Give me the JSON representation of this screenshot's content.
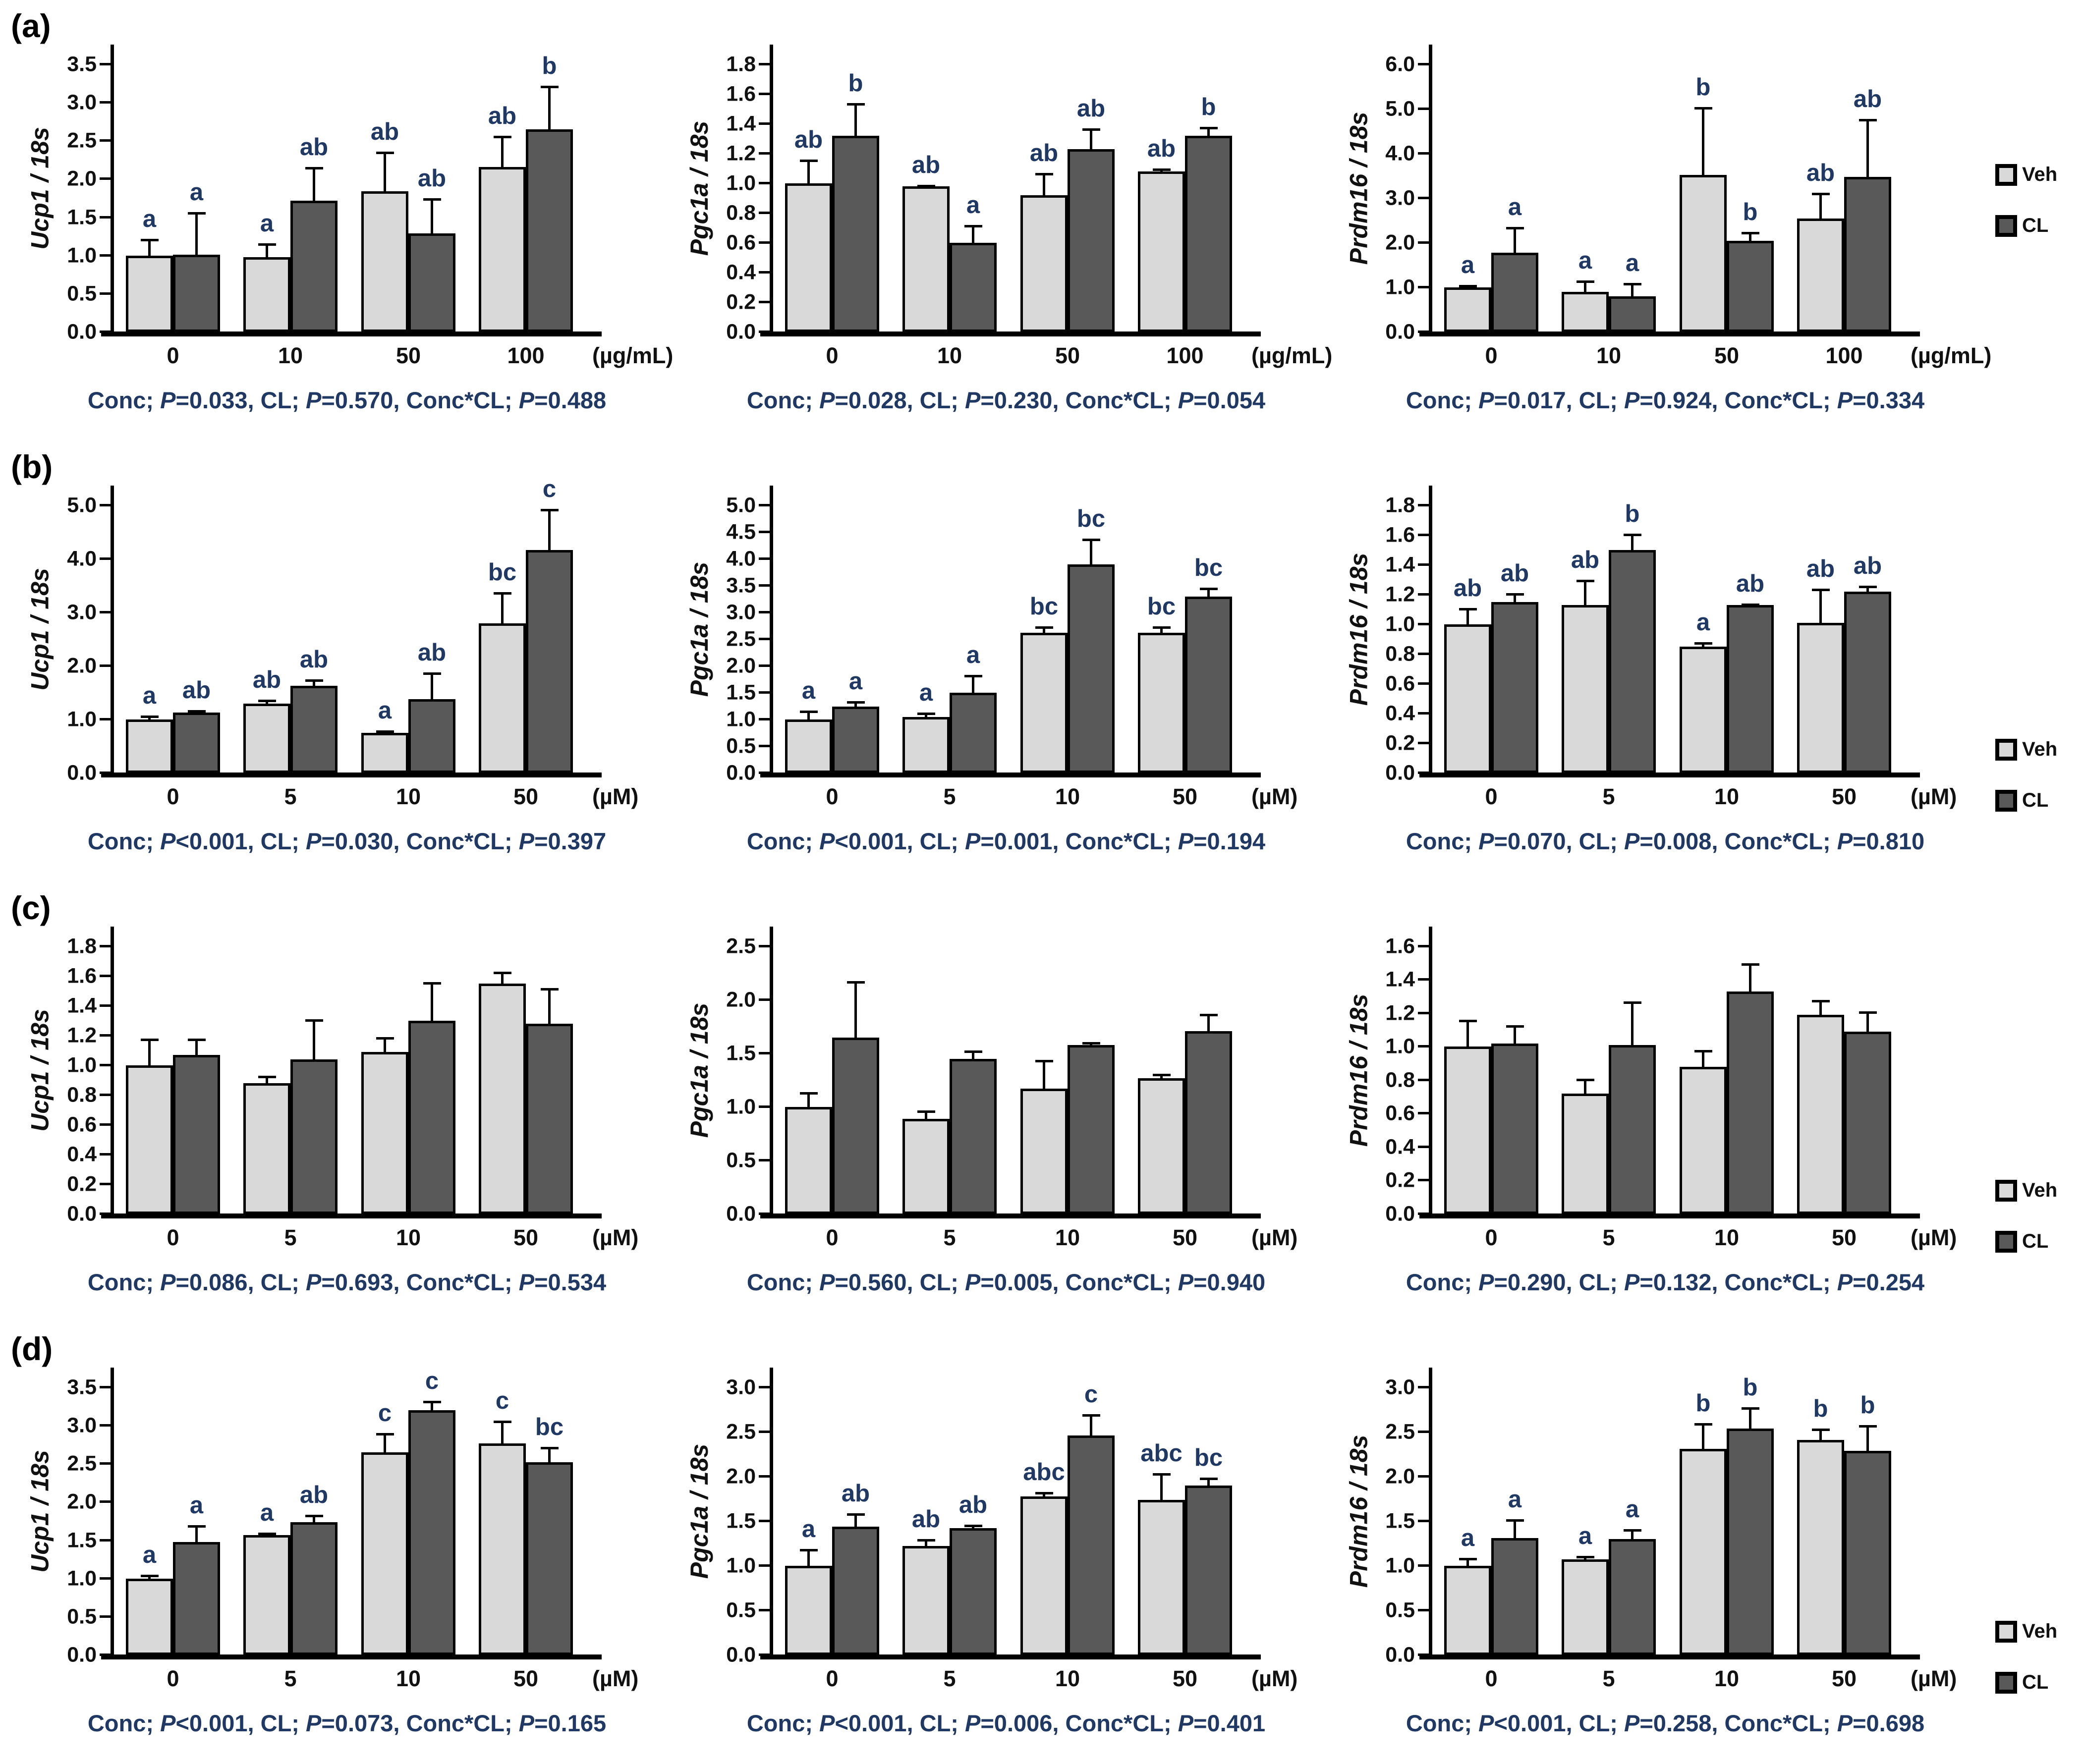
{
  "colors": {
    "veh_fill": "#D9D9D9",
    "cl_fill": "#595959",
    "bar_border": "#000000",
    "letter_color": "#1F3864",
    "caption_color": "#1F3864",
    "axis_color": "#000000"
  },
  "legend": {
    "items": [
      {
        "name": "Veh",
        "label": "Veh",
        "color": "#D9D9D9"
      },
      {
        "name": "CL",
        "label": "CL",
        "color": "#595959"
      }
    ]
  },
  "caption_labels": {
    "conc": "Conc; ",
    "cl": "CL; ",
    "interaction": "Conc*CL; ",
    "p": "P"
  },
  "chart_data": [
    {
      "panel": "(a)",
      "row": 0,
      "col": 0,
      "type": "bar",
      "ylabel": "Ucp1 / 18s",
      "unit": "(µg/mL)",
      "categories": [
        "0",
        "10",
        "50",
        "100"
      ],
      "ylim": [
        0,
        3.5
      ],
      "ystep": 0.5,
      "grid": false,
      "series": [
        {
          "name": "Veh",
          "values": [
            1.0,
            0.98,
            1.84,
            2.16
          ],
          "errors": [
            0.22,
            0.18,
            0.52,
            0.41
          ],
          "letters": [
            "a",
            "a",
            "ab",
            "ab"
          ]
        },
        {
          "name": "CL",
          "values": [
            1.01,
            1.72,
            1.29,
            2.65
          ],
          "errors": [
            0.56,
            0.44,
            0.46,
            0.57
          ],
          "letters": [
            "a",
            "ab",
            "ab",
            "b"
          ]
        }
      ],
      "caption": {
        "conc": "=0.033, ",
        "cl": "=0.570, ",
        "interaction": "=0.488"
      }
    },
    {
      "panel": "",
      "row": 0,
      "col": 1,
      "type": "bar",
      "ylabel": "Pgc1a / 18s",
      "unit": "(µg/mL)",
      "categories": [
        "0",
        "10",
        "50",
        "100"
      ],
      "ylim": [
        0,
        1.8
      ],
      "ystep": 0.2,
      "grid": false,
      "series": [
        {
          "name": "Veh",
          "values": [
            1.0,
            0.98,
            0.92,
            1.08
          ],
          "errors": [
            0.16,
            0.01,
            0.15,
            0.02
          ],
          "letters": [
            "ab",
            "ab",
            "ab",
            "ab"
          ]
        },
        {
          "name": "CL",
          "values": [
            1.32,
            0.6,
            1.23,
            1.32
          ],
          "errors": [
            0.22,
            0.12,
            0.14,
            0.06
          ],
          "letters": [
            "b",
            "a",
            "ab",
            "b"
          ]
        }
      ],
      "caption": {
        "conc": "=0.028, ",
        "cl": "=0.230, ",
        "interaction": "=0.054"
      }
    },
    {
      "panel": "",
      "row": 0,
      "col": 2,
      "type": "bar",
      "ylabel": "Prdm16 / 18s",
      "unit": "(µg/mL)",
      "categories": [
        "0",
        "10",
        "50",
        "100"
      ],
      "ylim": [
        0,
        6.0
      ],
      "ystep": 1.0,
      "grid": false,
      "series": [
        {
          "name": "Veh",
          "values": [
            1.0,
            0.9,
            3.52,
            2.55
          ],
          "errors": [
            0.05,
            0.25,
            1.52,
            0.58
          ],
          "letters": [
            "a",
            "a",
            "b",
            "ab"
          ]
        },
        {
          "name": "CL",
          "values": [
            1.78,
            0.8,
            2.05,
            3.48
          ],
          "errors": [
            0.58,
            0.3,
            0.2,
            1.3
          ],
          "letters": [
            "a",
            "a",
            "b",
            "ab"
          ]
        }
      ],
      "caption": {
        "conc": "=0.017, ",
        "cl": "=0.924, ",
        "interaction": "=0.334"
      }
    },
    {
      "panel": "(b)",
      "row": 1,
      "col": 0,
      "type": "bar",
      "ylabel": "Ucp1 / 18s",
      "unit": "(µM)",
      "categories": [
        "0",
        "5",
        "10",
        "50"
      ],
      "ylim": [
        0,
        5.0
      ],
      "ystep": 1.0,
      "grid": false,
      "series": [
        {
          "name": "Veh",
          "values": [
            1.0,
            1.3,
            0.75,
            2.8
          ],
          "errors": [
            0.07,
            0.07,
            0.05,
            0.58
          ],
          "letters": [
            "a",
            "ab",
            "a",
            "bc"
          ]
        },
        {
          "name": "CL",
          "values": [
            1.13,
            1.63,
            1.38,
            4.17
          ],
          "errors": [
            0.05,
            0.12,
            0.5,
            0.77
          ],
          "letters": [
            "ab",
            "ab",
            "ab",
            "c"
          ]
        }
      ],
      "caption": {
        "conc": "<0.001, ",
        "cl": "=0.030, ",
        "interaction": "=0.397"
      }
    },
    {
      "panel": "",
      "row": 1,
      "col": 1,
      "type": "bar",
      "ylabel": "Pgc1a / 18s",
      "unit": "(µM)",
      "categories": [
        "0",
        "5",
        "10",
        "50"
      ],
      "ylim": [
        0,
        5.0
      ],
      "ystep": 0.5,
      "grid": false,
      "series": [
        {
          "name": "Veh",
          "values": [
            1.0,
            1.05,
            2.62,
            2.62
          ],
          "errors": [
            0.17,
            0.08,
            0.12,
            0.12
          ],
          "letters": [
            "a",
            "a",
            "bc",
            "bc"
          ]
        },
        {
          "name": "CL",
          "values": [
            1.24,
            1.5,
            3.9,
            3.3
          ],
          "errors": [
            0.1,
            0.33,
            0.48,
            0.17
          ],
          "letters": [
            "a",
            "a",
            "bc",
            "bc"
          ]
        }
      ],
      "caption": {
        "conc": "<0.001, ",
        "cl": "=0.001, ",
        "interaction": "=0.194"
      }
    },
    {
      "panel": "",
      "row": 1,
      "col": 2,
      "type": "bar",
      "ylabel": "Prdm16 / 18s",
      "unit": "(µM)",
      "categories": [
        "0",
        "5",
        "10",
        "50"
      ],
      "ylim": [
        0,
        1.8
      ],
      "ystep": 0.2,
      "grid": false,
      "series": [
        {
          "name": "Veh",
          "values": [
            1.0,
            1.13,
            0.85,
            1.01
          ],
          "errors": [
            0.11,
            0.17,
            0.03,
            0.23
          ],
          "letters": [
            "ab",
            "ab",
            "a",
            "ab"
          ]
        },
        {
          "name": "CL",
          "values": [
            1.15,
            1.5,
            1.13,
            1.22
          ],
          "errors": [
            0.06,
            0.11,
            0.01,
            0.04
          ],
          "letters": [
            "ab",
            "b",
            "ab",
            "ab"
          ]
        }
      ],
      "caption": {
        "conc": "=0.070, ",
        "cl": "=0.008, ",
        "interaction": "=0.810"
      }
    },
    {
      "panel": "(c)",
      "row": 2,
      "col": 0,
      "type": "bar",
      "ylabel": "Ucp1 / 18s",
      "unit": "(µM)",
      "categories": [
        "0",
        "5",
        "10",
        "50"
      ],
      "ylim": [
        0,
        1.8
      ],
      "ystep": 0.2,
      "grid": false,
      "series": [
        {
          "name": "Veh",
          "values": [
            1.0,
            0.88,
            1.09,
            1.55
          ],
          "errors": [
            0.18,
            0.05,
            0.1,
            0.08
          ],
          "letters": [
            "",
            "",
            "",
            ""
          ]
        },
        {
          "name": "CL",
          "values": [
            1.07,
            1.04,
            1.3,
            1.28
          ],
          "errors": [
            0.11,
            0.27,
            0.26,
            0.24
          ],
          "letters": [
            "",
            "",
            "",
            ""
          ]
        }
      ],
      "caption": {
        "conc": "=0.086, ",
        "cl": "=0.693, ",
        "interaction": "=0.534"
      }
    },
    {
      "panel": "",
      "row": 2,
      "col": 1,
      "type": "bar",
      "ylabel": "Pgc1a / 18s",
      "unit": "(µM)",
      "categories": [
        "0",
        "5",
        "10",
        "50"
      ],
      "ylim": [
        0,
        2.5
      ],
      "ystep": 0.5,
      "grid": false,
      "series": [
        {
          "name": "Veh",
          "values": [
            1.0,
            0.89,
            1.17,
            1.27
          ],
          "errors": [
            0.14,
            0.08,
            0.27,
            0.04
          ],
          "letters": [
            "",
            "",
            "",
            ""
          ]
        },
        {
          "name": "CL",
          "values": [
            1.65,
            1.45,
            1.58,
            1.71
          ],
          "errors": [
            0.53,
            0.08,
            0.03,
            0.16
          ],
          "letters": [
            "",
            "",
            "",
            ""
          ]
        }
      ],
      "caption": {
        "conc": "=0.560, ",
        "cl": "=0.005, ",
        "interaction": "=0.940"
      }
    },
    {
      "panel": "",
      "row": 2,
      "col": 2,
      "type": "bar",
      "ylabel": "Prdm16 / 18s",
      "unit": "(µM)",
      "categories": [
        "0",
        "5",
        "10",
        "50"
      ],
      "ylim": [
        0,
        1.6
      ],
      "ystep": 0.2,
      "grid": false,
      "series": [
        {
          "name": "Veh",
          "values": [
            1.0,
            0.72,
            0.88,
            1.19
          ],
          "errors": [
            0.16,
            0.09,
            0.1,
            0.09
          ],
          "letters": [
            "",
            "",
            "",
            ""
          ]
        },
        {
          "name": "CL",
          "values": [
            1.02,
            1.01,
            1.33,
            1.09
          ],
          "errors": [
            0.11,
            0.26,
            0.17,
            0.12
          ],
          "letters": [
            "",
            "",
            "",
            ""
          ]
        }
      ],
      "caption": {
        "conc": "=0.290, ",
        "cl": "=0.132, ",
        "interaction": "=0.254"
      }
    },
    {
      "panel": "(d)",
      "row": 3,
      "col": 0,
      "type": "bar",
      "ylabel": "Ucp1 / 18s",
      "unit": "(µM)",
      "categories": [
        "0",
        "5",
        "10",
        "50"
      ],
      "ylim": [
        0,
        3.5
      ],
      "ystep": 0.5,
      "grid": false,
      "series": [
        {
          "name": "Veh",
          "values": [
            1.0,
            1.57,
            2.65,
            2.77
          ],
          "errors": [
            0.05,
            0.03,
            0.25,
            0.3
          ],
          "letters": [
            "a",
            "a",
            "c",
            "c"
          ]
        },
        {
          "name": "CL",
          "values": [
            1.48,
            1.74,
            3.2,
            2.52
          ],
          "errors": [
            0.22,
            0.1,
            0.12,
            0.2
          ],
          "letters": [
            "a",
            "ab",
            "c",
            "bc"
          ]
        }
      ],
      "caption": {
        "conc": "<0.001, ",
        "cl": "=0.073, ",
        "interaction": "=0.165"
      }
    },
    {
      "panel": "",
      "row": 3,
      "col": 1,
      "type": "bar",
      "ylabel": "Pgc1a / 18s",
      "unit": "(µM)",
      "categories": [
        "0",
        "5",
        "10",
        "50"
      ],
      "ylim": [
        0,
        3.0
      ],
      "ystep": 0.5,
      "grid": false,
      "series": [
        {
          "name": "Veh",
          "values": [
            1.0,
            1.22,
            1.78,
            1.74
          ],
          "errors": [
            0.19,
            0.08,
            0.05,
            0.3
          ],
          "letters": [
            "a",
            "ab",
            "abc",
            "abc"
          ]
        },
        {
          "name": "CL",
          "values": [
            1.44,
            1.42,
            2.46,
            1.9
          ],
          "errors": [
            0.15,
            0.04,
            0.24,
            0.09
          ],
          "letters": [
            "ab",
            "ab",
            "c",
            "bc"
          ]
        }
      ],
      "caption": {
        "conc": "<0.001, ",
        "cl": "=0.006, ",
        "interaction": "=0.401"
      }
    },
    {
      "panel": "",
      "row": 3,
      "col": 2,
      "type": "bar",
      "ylabel": "Prdm16 / 18s",
      "unit": "(µM)",
      "categories": [
        "0",
        "5",
        "10",
        "50"
      ],
      "ylim": [
        0,
        3.0
      ],
      "ystep": 0.5,
      "grid": false,
      "series": [
        {
          "name": "Veh",
          "values": [
            1.0,
            1.07,
            2.31,
            2.41
          ],
          "errors": [
            0.09,
            0.04,
            0.29,
            0.13
          ],
          "letters": [
            "a",
            "a",
            "b",
            "b"
          ]
        },
        {
          "name": "CL",
          "values": [
            1.31,
            1.3,
            2.54,
            2.29
          ],
          "errors": [
            0.21,
            0.11,
            0.24,
            0.29
          ],
          "letters": [
            "a",
            "a",
            "b",
            "b"
          ]
        }
      ],
      "caption": {
        "conc": "<0.001, ",
        "cl": "=0.258, ",
        "interaction": "=0.698"
      }
    }
  ]
}
